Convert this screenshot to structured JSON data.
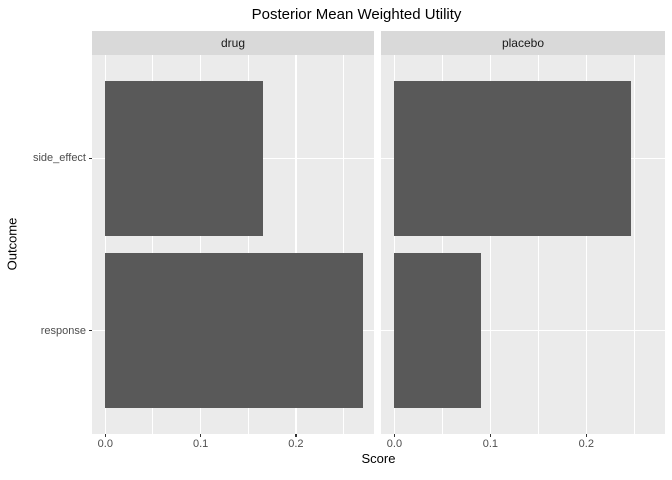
{
  "chart_data": {
    "type": "bar",
    "orientation": "horizontal",
    "title": "Posterior Mean Weighted Utility",
    "xlabel": "Score",
    "ylabel": "Outcome",
    "categories": [
      "side_effect",
      "response"
    ],
    "facets": [
      {
        "label": "drug",
        "values": [
          0.165,
          0.27
        ]
      },
      {
        "label": "placebo",
        "values": [
          0.247,
          0.09
        ]
      }
    ],
    "x_ticks": [
      {
        "value": 0.0,
        "label": "0.0"
      },
      {
        "value": 0.1,
        "label": "0.1"
      },
      {
        "value": 0.2,
        "label": "0.2"
      }
    ],
    "x_minor_breaks": [
      0.05,
      0.15,
      0.25
    ],
    "xlim": [
      -0.014,
      0.282
    ],
    "grid": true,
    "legend": false,
    "colors": {
      "bar": "#595959",
      "panel_bg": "#EBEBEB",
      "strip_bg": "#D9D9D9",
      "gridline": "#FFFFFF",
      "tick_mark": "#333333",
      "tick_label": "#4D4D4D",
      "axis_title": "#000000",
      "strip_text": "#1A1A1A",
      "plot_bg": "#FFFFFF"
    }
  }
}
